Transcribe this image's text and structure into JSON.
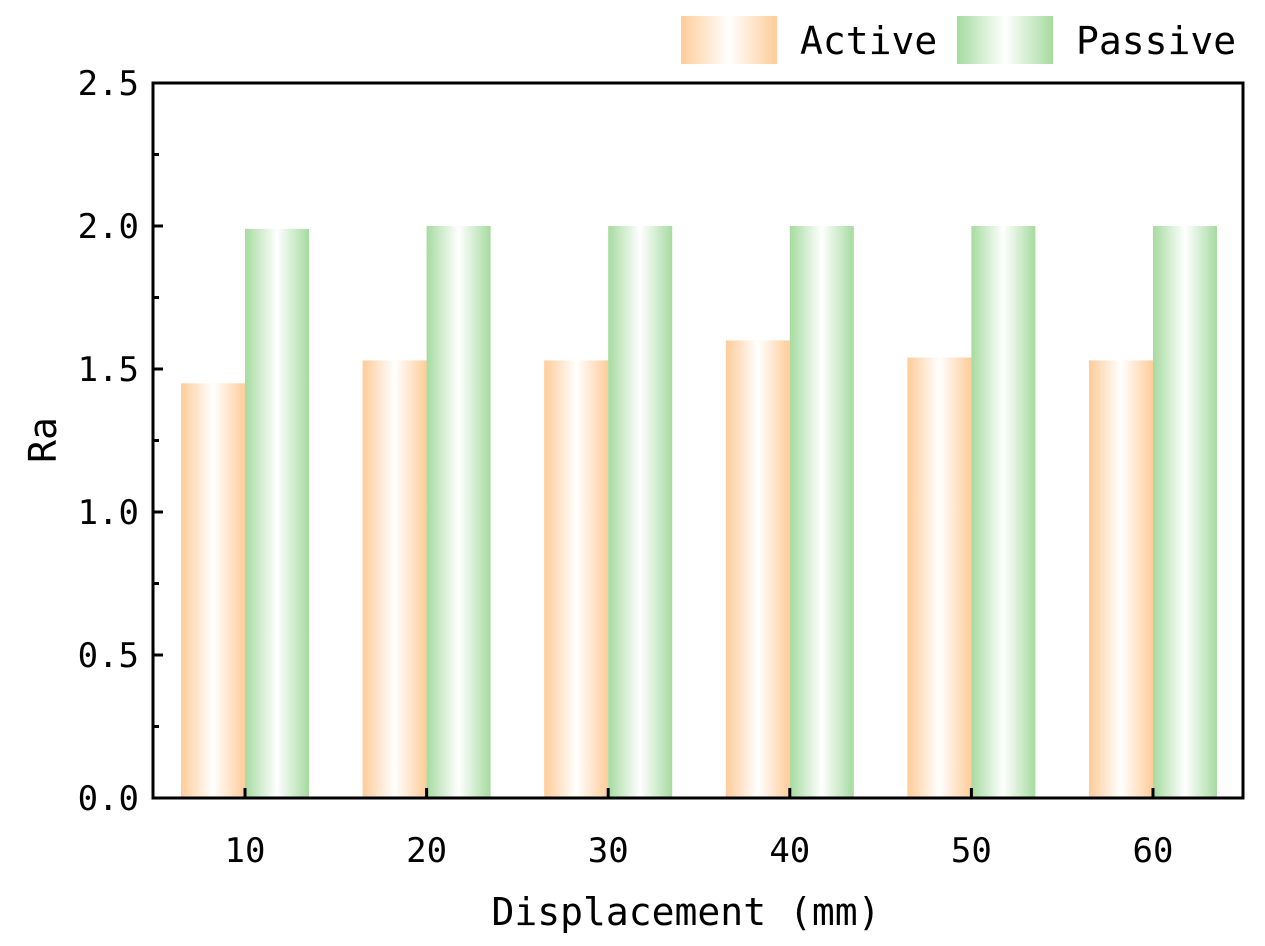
{
  "chart_data": {
    "type": "bar",
    "xlabel": "Displacement (mm)",
    "ylabel": "Ra",
    "categories": [
      "10",
      "20",
      "30",
      "40",
      "50",
      "60"
    ],
    "series": [
      {
        "name": "Active",
        "values": [
          1.45,
          1.53,
          1.53,
          1.6,
          1.54,
          1.53
        ],
        "color": "#FFCC99"
      },
      {
        "name": "Passive",
        "values": [
          1.99,
          2.0,
          2.0,
          2.0,
          2.0,
          2.0
        ],
        "color": "#A6DBA0"
      }
    ],
    "ylim": [
      0,
      2.5
    ],
    "yticks": [
      "0.0",
      "0.5",
      "1.0",
      "1.5",
      "2.0",
      "2.5"
    ],
    "grid": false,
    "legend_position": "top-right"
  }
}
